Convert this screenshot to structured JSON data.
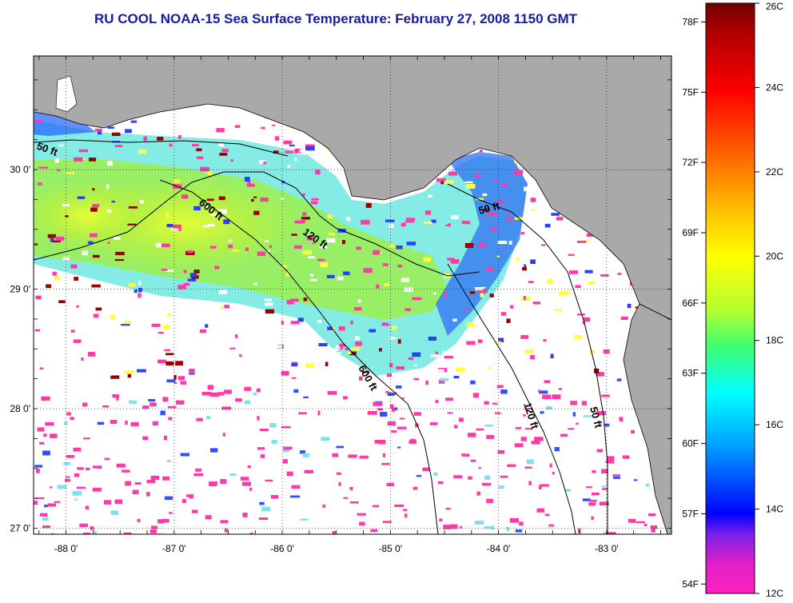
{
  "title": "RU COOL  NOAA-15  Sea Surface Temperature:  February 27, 2008 1150 GMT",
  "map": {
    "lon_ticks": [
      "-88 0'",
      "-87 0'",
      "-86 0'",
      "-85 0'",
      "-84 0'",
      "-83 0'"
    ],
    "lat_ticks": [
      "27 0'",
      "28 0'",
      "29 0'",
      "30 0'"
    ],
    "lon_range": [
      -88.3,
      -82.4
    ],
    "lat_range": [
      26.95,
      30.95
    ],
    "colors": {
      "land": "#a9a9a9",
      "ocean_nodata": "#ffffff",
      "cloud_flag": "#ff3aa8"
    },
    "contour_labels": [
      "50 ft",
      "600 ft",
      "120 ft",
      "50 ft",
      "600 ft",
      "120 ft",
      "50 ft"
    ]
  },
  "colorbar": {
    "fahrenheit_labels": [
      "78F",
      "75F",
      "72F",
      "69F",
      "66F",
      "63F",
      "60F",
      "57F",
      "54F"
    ],
    "celsius_labels": [
      "26C",
      "24C",
      "22C",
      "20C",
      "18C",
      "16C",
      "14C",
      "12C"
    ],
    "range_c": [
      12,
      26
    ]
  }
}
